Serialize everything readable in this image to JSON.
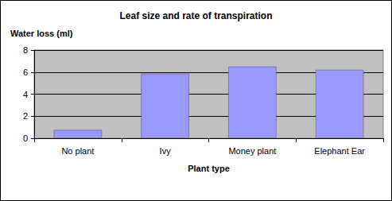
{
  "chart_data": {
    "type": "bar",
    "title": "Leaf size and rate of transpiration",
    "xlabel": "Plant type",
    "ylabel": "Water loss (ml)",
    "categories": [
      "No plant",
      "Ivy",
      "Money plant",
      "Elephant Ear"
    ],
    "values": [
      0.75,
      5.85,
      6.5,
      6.2
    ],
    "color": "#9999ff",
    "ylim": [
      0,
      8
    ],
    "yticks": [
      0,
      2,
      4,
      6,
      8
    ],
    "grid": true
  }
}
